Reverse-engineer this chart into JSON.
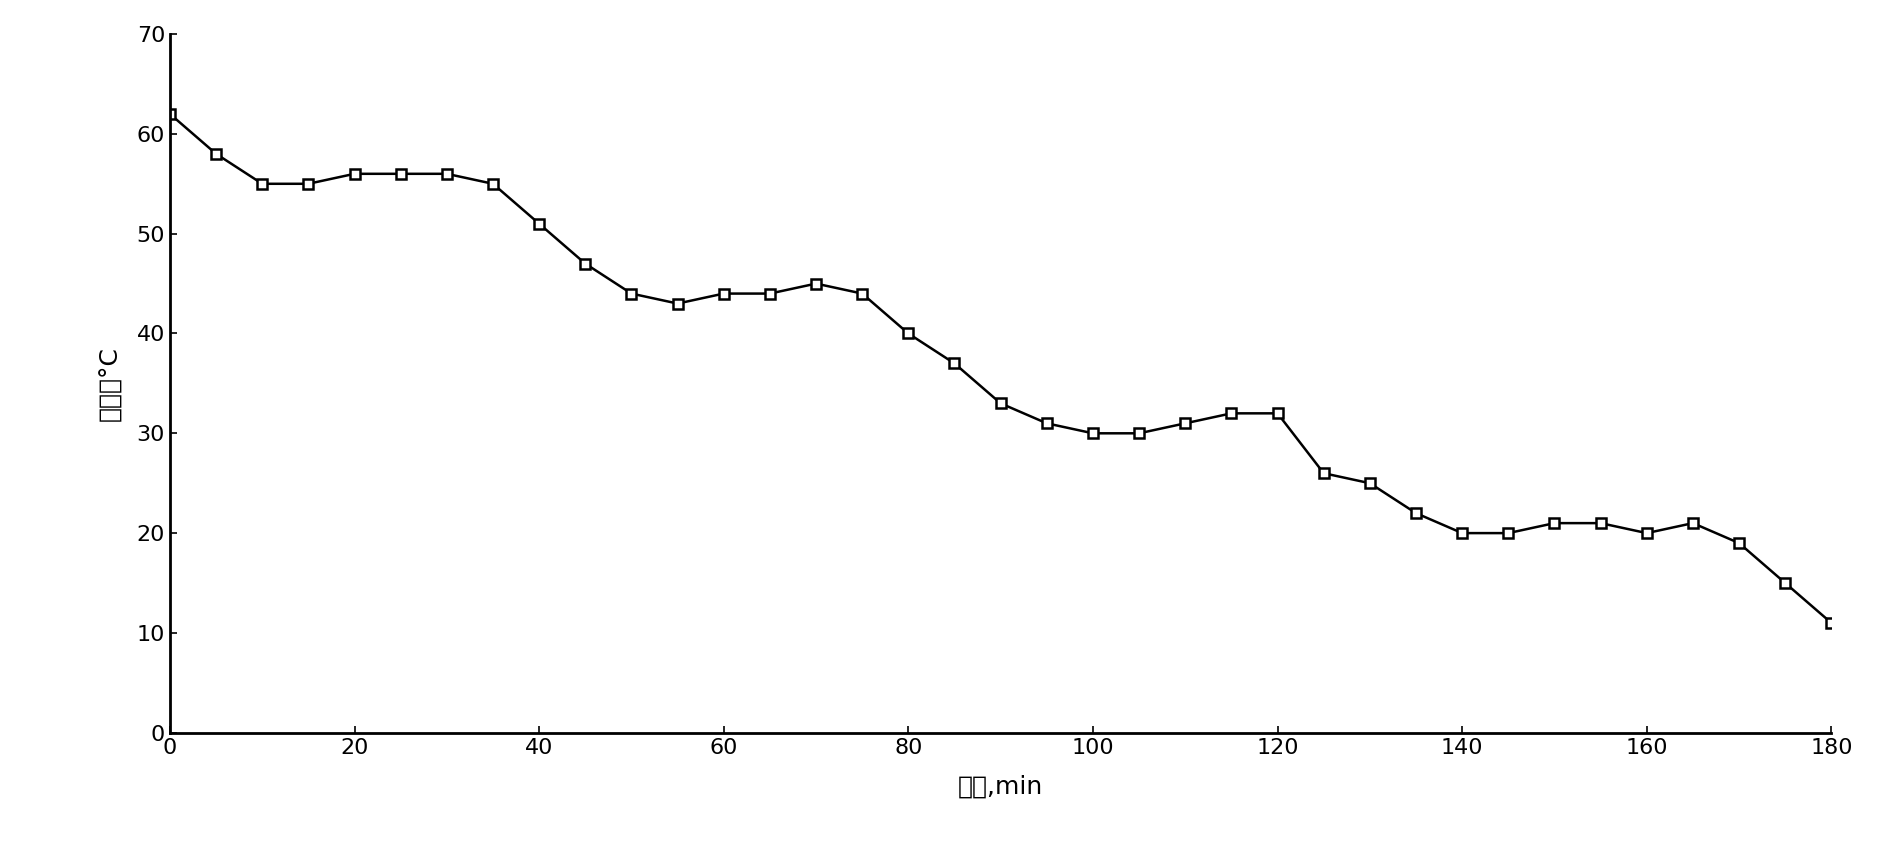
{
  "x": [
    0,
    5,
    10,
    15,
    20,
    25,
    30,
    35,
    40,
    45,
    50,
    55,
    60,
    65,
    70,
    75,
    80,
    85,
    90,
    95,
    100,
    105,
    110,
    115,
    120,
    125,
    130,
    135,
    140,
    145,
    150,
    155,
    160,
    165,
    170,
    175,
    180
  ],
  "y": [
    62,
    58,
    55,
    55,
    56,
    56,
    56,
    55,
    51,
    47,
    44,
    43,
    44,
    44,
    45,
    44,
    40,
    37,
    33,
    31,
    30,
    30,
    31,
    32,
    32,
    26,
    25,
    22,
    20,
    20,
    21,
    21,
    20,
    21,
    19,
    15,
    11
  ],
  "xlabel": "时间,min",
  "ylabel": "温度，°C",
  "xlim": [
    0,
    180
  ],
  "ylim": [
    0,
    70
  ],
  "xticks": [
    0,
    20,
    40,
    60,
    80,
    100,
    120,
    140,
    160,
    180
  ],
  "yticks": [
    0,
    10,
    20,
    30,
    40,
    50,
    60,
    70
  ],
  "line_color": "#000000",
  "marker": "s",
  "marker_size": 7,
  "marker_facecolor": "#ffffff",
  "marker_edgecolor": "#000000",
  "linewidth": 1.8,
  "background_color": "#ffffff",
  "xlabel_fontsize": 18,
  "ylabel_fontsize": 18,
  "tick_fontsize": 16
}
